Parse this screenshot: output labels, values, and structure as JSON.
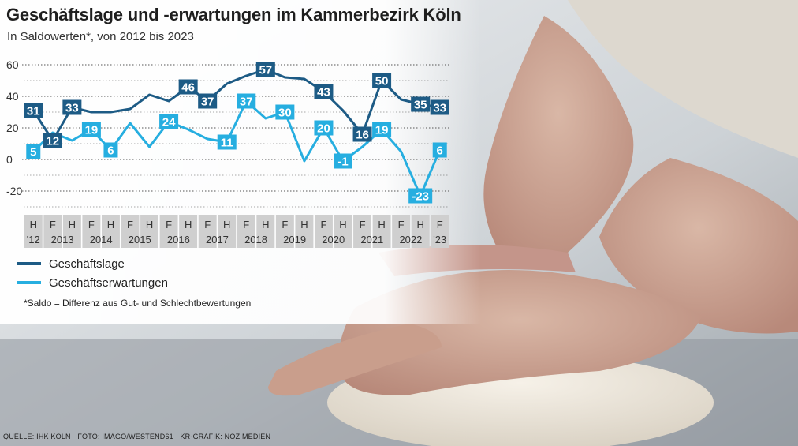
{
  "title": "Geschäftslage und -erwartungen im Kammerbezirk Köln",
  "subtitle": "In Saldowerten*, von 2012 bis 2023",
  "footnote": "*Saldo = Differenz aus Gut- und Schlechtbewertungen",
  "credit": "QUELLE: IHK KÖLN · FOTO: IMAGO/WESTEND61 · KR-GRAFIK: NOZ MEDIEN",
  "colors": {
    "geschaeftslage": "#1d5b85",
    "geschaeftserwartungen": "#26aee0",
    "axis_band": "#cfcfcf"
  },
  "legend": [
    {
      "label": "Geschäftslage",
      "color": "#1d5b85"
    },
    {
      "label": "Geschäftserwartungen",
      "color": "#26aee0"
    }
  ],
  "chart_data": {
    "type": "line",
    "title": "Geschäftslage und -erwartungen im Kammerbezirk Köln",
    "subtitle": "In Saldowerten*, von 2012 bis 2023",
    "x": [
      "H '12",
      "F 2013",
      "H 2013",
      "F 2014",
      "H 2014",
      "F 2015",
      "H 2015",
      "F 2016",
      "H 2016",
      "F 2017",
      "H 2017",
      "F 2018",
      "H 2018",
      "F 2019",
      "H 2019",
      "F 2020",
      "H 2020",
      "F 2021",
      "H 2021",
      "F 2022",
      "H 2022",
      "F '23"
    ],
    "x_ticks_top": [
      "H",
      "F",
      "H",
      "F",
      "H",
      "F",
      "H",
      "F",
      "H",
      "F",
      "H",
      "F",
      "H",
      "F",
      "H",
      "F",
      "H",
      "F",
      "H",
      "F",
      "H",
      "F"
    ],
    "x_ticks_bottom": [
      "'12",
      "2013",
      "2014",
      "2015",
      "2016",
      "2017",
      "2018",
      "2019",
      "2020",
      "2021",
      "2022",
      "'23"
    ],
    "series": [
      {
        "name": "Geschäftslage",
        "values": [
          31,
          12,
          33,
          30,
          30,
          32,
          41,
          37,
          46,
          37,
          48,
          53,
          57,
          52,
          51,
          43,
          31,
          16,
          50,
          38,
          35,
          33
        ]
      },
      {
        "name": "Geschäftserwartungen",
        "values": [
          5,
          17,
          12,
          19,
          6,
          23,
          8,
          24,
          19,
          13,
          11,
          37,
          26,
          30,
          -1,
          20,
          -1,
          8,
          19,
          5,
          -23,
          6
        ]
      }
    ],
    "data_labels": [
      {
        "series": 0,
        "index": 0,
        "text": "31"
      },
      {
        "series": 0,
        "index": 1,
        "text": "12"
      },
      {
        "series": 0,
        "index": 2,
        "text": "33"
      },
      {
        "series": 0,
        "index": 8,
        "text": "46"
      },
      {
        "series": 0,
        "index": 9,
        "text": "37"
      },
      {
        "series": 0,
        "index": 12,
        "text": "57"
      },
      {
        "series": 0,
        "index": 15,
        "text": "43"
      },
      {
        "series": 0,
        "index": 17,
        "text": "16"
      },
      {
        "series": 0,
        "index": 18,
        "text": "50"
      },
      {
        "series": 0,
        "index": 20,
        "text": "35"
      },
      {
        "series": 0,
        "index": 21,
        "text": "33"
      },
      {
        "series": 1,
        "index": 0,
        "text": "5"
      },
      {
        "series": 1,
        "index": 3,
        "text": "19"
      },
      {
        "series": 1,
        "index": 4,
        "text": "6"
      },
      {
        "series": 1,
        "index": 7,
        "text": "24"
      },
      {
        "series": 1,
        "index": 10,
        "text": "11"
      },
      {
        "series": 1,
        "index": 11,
        "text": "37"
      },
      {
        "series": 1,
        "index": 13,
        "text": "30"
      },
      {
        "series": 1,
        "index": 15,
        "text": "20"
      },
      {
        "series": 1,
        "index": 16,
        "text": "-1"
      },
      {
        "series": 1,
        "index": 18,
        "text": "19"
      },
      {
        "series": 1,
        "index": 20,
        "text": "-23"
      },
      {
        "series": 1,
        "index": 21,
        "text": "6"
      }
    ],
    "y_ticks": [
      60,
      40,
      20,
      0,
      -20
    ],
    "ylim": [
      -35,
      65
    ],
    "grid": true,
    "legend_position": "bottom-left"
  }
}
